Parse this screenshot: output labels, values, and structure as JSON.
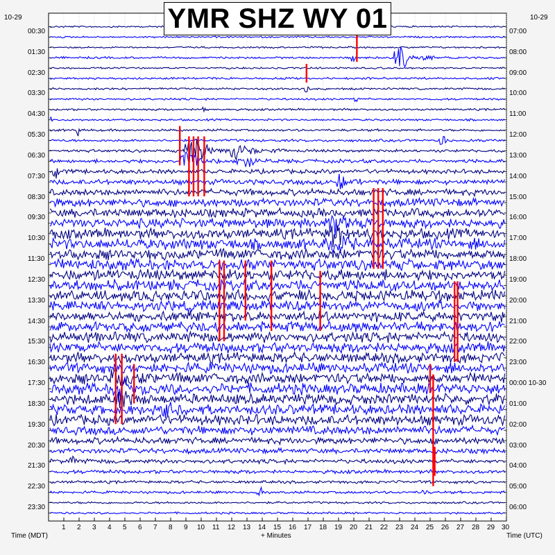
{
  "title": "YMR SHZ WY 01",
  "date_left": "10-29",
  "date_right": "10-29",
  "xlabel_left": "Time (MDT)",
  "xlabel_center": "+ Minutes",
  "xlabel_right": "Time (UTC)",
  "colors": {
    "trace_a": "#000080",
    "trace_b": "#0000ff",
    "pick": "#ff0000",
    "plot_bg": "#ffffff",
    "grid": "#b4b4b4"
  },
  "chart_data": {
    "type": "helicorder",
    "station": "YMR",
    "channel": "SHZ",
    "network": "WY",
    "location": "01",
    "rows_count": 48,
    "minutes_per_row": 30,
    "x_ticks": [
      1,
      2,
      3,
      4,
      5,
      6,
      7,
      8,
      9,
      10,
      11,
      12,
      13,
      14,
      15,
      16,
      17,
      18,
      19,
      20,
      21,
      22,
      23,
      24,
      25,
      26,
      27,
      28,
      29,
      30
    ],
    "xlim": [
      0,
      30
    ],
    "left_tick_labels": [
      "00:30",
      "01:30",
      "02:30",
      "03:30",
      "04:30",
      "05:30",
      "06:30",
      "07:30",
      "08:30",
      "09:30",
      "10:30",
      "11:30",
      "12:30",
      "13:30",
      "14:30",
      "15:30",
      "16:30",
      "17:30",
      "18:30",
      "19:30",
      "20:30",
      "21:30",
      "22:30",
      "23:30"
    ],
    "right_tick_labels": [
      "07:00",
      "08:00",
      "09:00",
      "10:00",
      "11:00",
      "12:00",
      "13:00",
      "14:00",
      "15:00",
      "16:00",
      "17:00",
      "18:00",
      "19:00",
      "20:00",
      "21:00",
      "22:00",
      "23:00",
      "00:00 10-30",
      "01:00",
      "02:00",
      "03:00",
      "04:00",
      "05:00",
      "06:00"
    ],
    "row_noise_levels": [
      0.12,
      0.12,
      0.12,
      0.14,
      0.12,
      0.14,
      0.14,
      0.14,
      0.14,
      0.14,
      0.16,
      0.18,
      0.2,
      0.25,
      0.3,
      0.35,
      0.45,
      0.55,
      0.6,
      0.65,
      0.7,
      0.75,
      0.75,
      0.75,
      0.75,
      0.75,
      0.75,
      0.7,
      0.7,
      0.7,
      0.7,
      0.72,
      0.7,
      0.7,
      0.75,
      0.75,
      0.72,
      0.7,
      0.7,
      0.6,
      0.45,
      0.35,
      0.3,
      0.25,
      0.2,
      0.18,
      0.15,
      0.14
    ],
    "events": [
      {
        "row": 3,
        "minute": 22.8,
        "amplitude": 3.2,
        "duration_min": 2.5
      },
      {
        "row": 3,
        "minute": 19.9,
        "amplitude": 1.8,
        "duration_min": 0.4
      },
      {
        "row": 6,
        "minute": 16.9,
        "amplitude": 1.5,
        "duration_min": 0.3
      },
      {
        "row": 7,
        "minute": 20.1,
        "amplitude": 1.6,
        "duration_min": 0.3
      },
      {
        "row": 8,
        "minute": 10.2,
        "amplitude": 1.1,
        "duration_min": 0.4
      },
      {
        "row": 9,
        "minute": 0.1,
        "amplitude": 1.2,
        "duration_min": 0.3
      },
      {
        "row": 10,
        "minute": 1.9,
        "amplitude": 1.3,
        "duration_min": 0.4
      },
      {
        "row": 11,
        "minute": 25.8,
        "amplitude": 1.6,
        "duration_min": 0.6
      },
      {
        "row": 12,
        "minute": 9.0,
        "amplitude": 3.5,
        "duration_min": 4.0
      },
      {
        "row": 12,
        "minute": 12.0,
        "amplitude": 1.8,
        "duration_min": 4.0
      },
      {
        "row": 13,
        "minute": 8.8,
        "amplitude": 3.0,
        "duration_min": 3.0
      },
      {
        "row": 13,
        "minute": 12.5,
        "amplitude": 1.4,
        "duration_min": 3.0
      },
      {
        "row": 14,
        "minute": 0.4,
        "amplitude": 1.3,
        "duration_min": 1.0
      },
      {
        "row": 15,
        "minute": 19.0,
        "amplitude": 1.8,
        "duration_min": 1.5
      },
      {
        "row": 19,
        "minute": 18.5,
        "amplitude": 2.2,
        "duration_min": 3.0
      },
      {
        "row": 20,
        "minute": 18.5,
        "amplitude": 2.2,
        "duration_min": 3.0
      },
      {
        "row": 21,
        "minute": 18.5,
        "amplitude": 2.0,
        "duration_min": 3.0
      },
      {
        "row": 34,
        "minute": 4.2,
        "amplitude": 2.0,
        "duration_min": 2.5
      },
      {
        "row": 35,
        "minute": 4.4,
        "amplitude": 2.4,
        "duration_min": 2.5
      },
      {
        "row": 36,
        "minute": 4.5,
        "amplitude": 2.2,
        "duration_min": 2.0
      },
      {
        "row": 37,
        "minute": 7.5,
        "amplitude": 1.6,
        "duration_min": 2.0
      },
      {
        "row": 42,
        "minute": 1.5,
        "amplitude": 1.2,
        "duration_min": 0.6
      },
      {
        "row": 45,
        "minute": 13.8,
        "amplitude": 1.4,
        "duration_min": 0.6
      },
      {
        "row": 45,
        "minute": 24.5,
        "amplitude": 1.0,
        "duration_min": 0.4
      }
    ],
    "clipped_segments": [
      {
        "row_start": 4,
        "row_end": 5,
        "minute": 16.9
      },
      {
        "row_start": 1,
        "row_end": 3,
        "minute": 20.2
      },
      {
        "row_start": 10,
        "row_end": 13,
        "minute": 8.6
      },
      {
        "row_start": 11,
        "row_end": 16,
        "minute": 9.2
      },
      {
        "row_start": 11,
        "row_end": 16,
        "minute": 9.5
      },
      {
        "row_start": 11,
        "row_end": 16,
        "minute": 9.8
      },
      {
        "row_start": 11,
        "row_end": 16,
        "minute": 10.2
      },
      {
        "row_start": 16,
        "row_end": 23,
        "minute": 21.3
      },
      {
        "row_start": 16,
        "row_end": 23,
        "minute": 21.6
      },
      {
        "row_start": 16,
        "row_end": 23,
        "minute": 21.9
      },
      {
        "row_start": 23,
        "row_end": 30,
        "minute": 11.2
      },
      {
        "row_start": 23,
        "row_end": 30,
        "minute": 11.5
      },
      {
        "row_start": 23,
        "row_end": 28,
        "minute": 12.9
      },
      {
        "row_start": 23,
        "row_end": 29,
        "minute": 14.6
      },
      {
        "row_start": 24,
        "row_end": 29,
        "minute": 17.8
      },
      {
        "row_start": 25,
        "row_end": 32,
        "minute": 26.6
      },
      {
        "row_start": 25,
        "row_end": 32,
        "minute": 26.8
      },
      {
        "row_start": 32,
        "row_end": 38,
        "minute": 4.4
      },
      {
        "row_start": 32,
        "row_end": 38,
        "minute": 4.8
      },
      {
        "row_start": 33,
        "row_end": 36,
        "minute": 5.6
      },
      {
        "row_start": 34,
        "row_end": 44,
        "minute": 25.2
      },
      {
        "row_start": 33,
        "row_end": 35,
        "minute": 25.0
      },
      {
        "row_start": 41,
        "row_end": 43,
        "minute": 25.3
      }
    ]
  }
}
